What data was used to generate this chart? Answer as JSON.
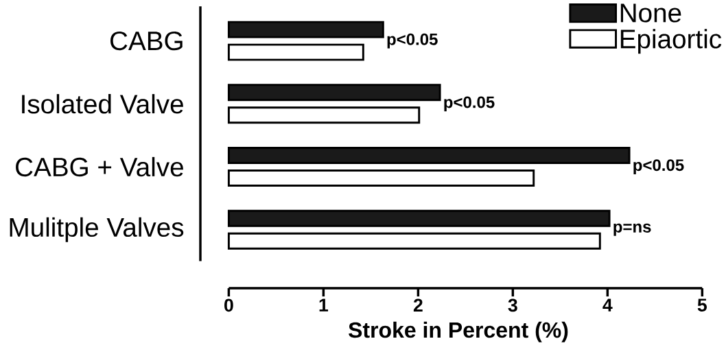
{
  "chart_data": {
    "type": "bar",
    "orientation": "horizontal",
    "xlabel": "Stroke in Percent (%)",
    "categories": [
      "CABG",
      "Isolated Valve",
      "CABG + Valve",
      "Mulitple Valves"
    ],
    "series": [
      {
        "name": "None",
        "color": "#1a1a1a",
        "values": [
          1.63,
          2.23,
          4.23,
          4.02
        ]
      },
      {
        "name": "Epiaortic",
        "color": "#ffffff",
        "values": [
          1.42,
          2.01,
          3.22,
          3.92
        ]
      }
    ],
    "xlim": [
      0,
      5
    ],
    "xticks": [
      0,
      1,
      2,
      3,
      4,
      5
    ],
    "legend": "top right",
    "grid": false,
    "annotations": [
      "p<0.05",
      "p<0.05",
      "p<0.05",
      "p=ns"
    ]
  }
}
